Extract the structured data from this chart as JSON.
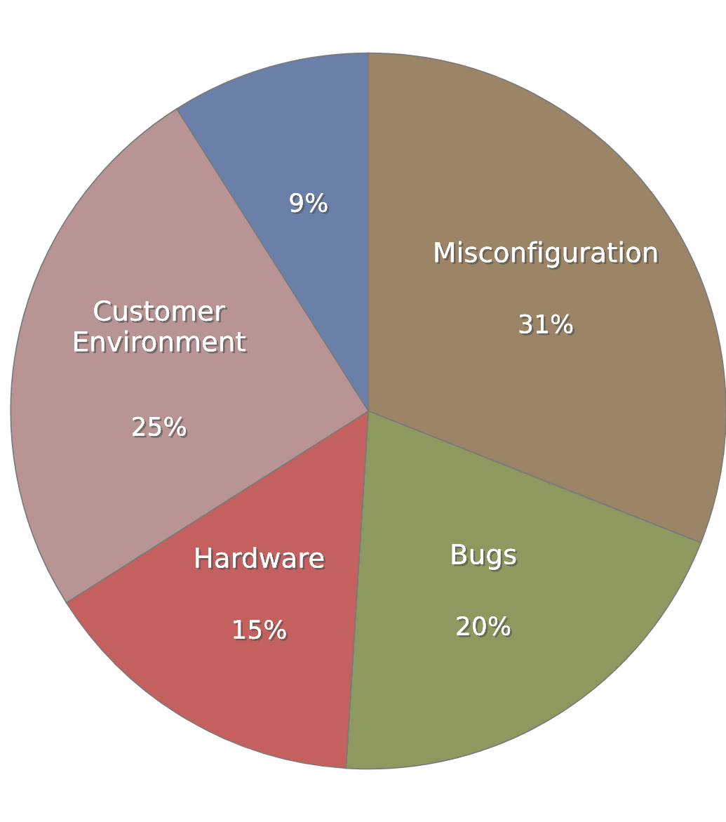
{
  "chart_data": {
    "type": "pie",
    "categories": [
      "Misconfiguration",
      "Bugs",
      "Hardware",
      "Customer\nEnvironment",
      null
    ],
    "values": [
      31,
      20,
      15,
      25,
      9
    ],
    "colors": [
      "#9c8466",
      "#8e9960",
      "#c4605e",
      "#b99494",
      "#6a80a8"
    ],
    "value_labels": [
      "31%",
      "20%",
      "15%",
      "25%",
      "9%"
    ]
  }
}
